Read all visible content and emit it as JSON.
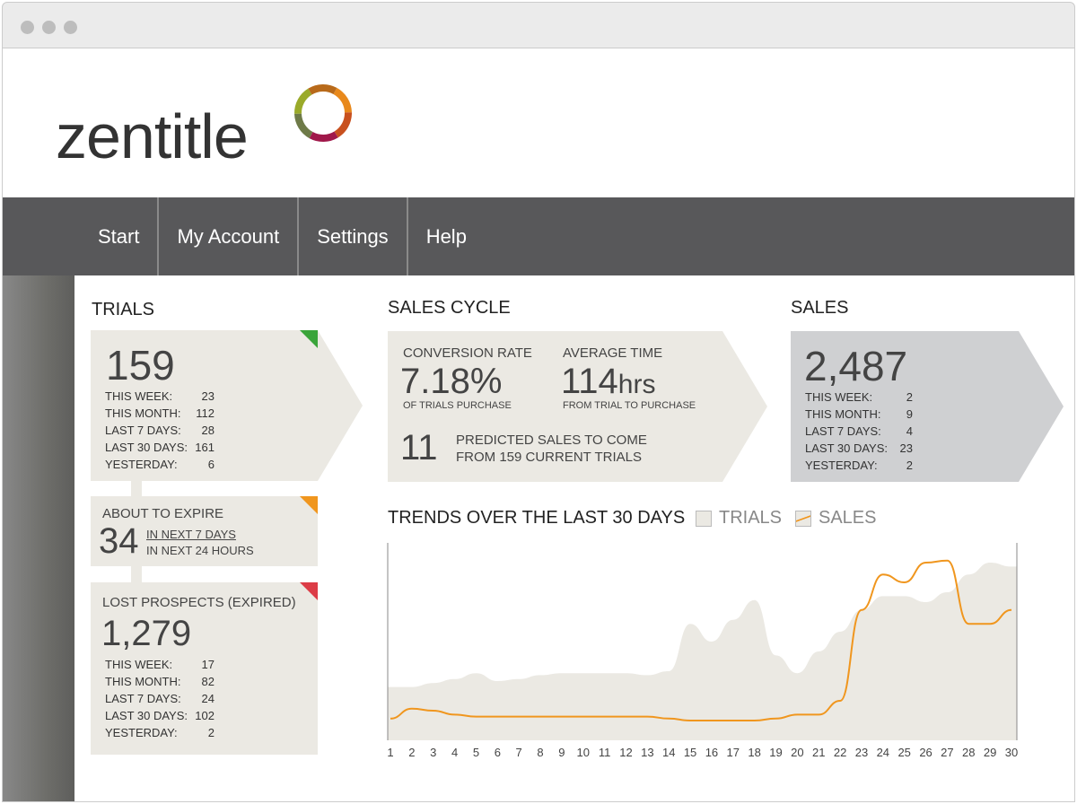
{
  "brand": {
    "name": "zentitle",
    "ring_colors": [
      "#e8891c",
      "#c8501e",
      "#a0184a",
      "#6e7a48",
      "#9aaa2a",
      "#b86a1a"
    ]
  },
  "nav": [
    "Start",
    "My Account",
    "Settings",
    "Help"
  ],
  "trials": {
    "title": "TRIALS",
    "total": "159",
    "rows": [
      [
        "THIS WEEK:",
        "23"
      ],
      [
        "THIS MONTH:",
        "112"
      ],
      [
        "LAST 7 DAYS:",
        "28"
      ],
      [
        "LAST 30 DAYS:",
        "161"
      ],
      [
        "YESTERDAY:",
        "6"
      ]
    ],
    "flag_color": "#3aa43a"
  },
  "expire": {
    "title": "ABOUT TO EXPIRE",
    "value": "34",
    "line1": "IN NEXT 7 DAYS",
    "line2": "IN NEXT 24 HOURS",
    "flag_color": "#f0961e"
  },
  "lost": {
    "title": "LOST PROSPECTS (EXPIRED)",
    "total": "1,279",
    "rows": [
      [
        "THIS WEEK:",
        "17"
      ],
      [
        "THIS MONTH:",
        "82"
      ],
      [
        "LAST 7 DAYS:",
        "24"
      ],
      [
        "LAST 30 DAYS:",
        "102"
      ],
      [
        "YESTERDAY:",
        "2"
      ]
    ],
    "flag_color": "#dc3c46"
  },
  "cycle": {
    "title": "SALES CYCLE",
    "conv_label": "CONVERSION RATE",
    "conv_value": "7.18%",
    "conv_sub": "OF TRIALS PURCHASE",
    "avg_label": "AVERAGE TIME",
    "avg_value": "114",
    "avg_unit": "hrs",
    "avg_sub": "FROM TRIAL TO PURCHASE",
    "pred_value": "11",
    "pred_line1": "PREDICTED SALES TO COME",
    "pred_line2": "FROM 159 CURRENT TRIALS"
  },
  "sales": {
    "title": "SALES",
    "total": "2,487",
    "rows": [
      [
        "THIS WEEK:",
        "2"
      ],
      [
        "THIS MONTH:",
        "9"
      ],
      [
        "LAST 7 DAYS:",
        "4"
      ],
      [
        "LAST 30 DAYS:",
        "23"
      ],
      [
        "YESTERDAY:",
        "2"
      ]
    ]
  },
  "chart_data": {
    "type": "area",
    "title": "TRENDS OVER THE LAST 30 DAYS",
    "x": [
      1,
      2,
      3,
      4,
      5,
      6,
      7,
      8,
      9,
      10,
      11,
      12,
      13,
      14,
      15,
      16,
      17,
      18,
      19,
      20,
      21,
      22,
      23,
      24,
      25,
      26,
      27,
      28,
      29,
      30
    ],
    "series": [
      {
        "name": "TRIALS",
        "type": "area",
        "color": "#ebe9e3",
        "values": [
          27,
          27,
          29,
          31,
          34,
          30,
          31,
          33,
          34,
          34,
          34,
          34,
          33,
          35,
          59,
          50,
          61,
          71,
          43,
          34,
          45,
          55,
          66,
          73,
          73,
          70,
          75,
          84,
          90,
          88
        ]
      },
      {
        "name": "SALES",
        "type": "line",
        "color": "#f0961e",
        "values": [
          11,
          16,
          15,
          13,
          12,
          12,
          12,
          12,
          12,
          12,
          12,
          12,
          12,
          11,
          10,
          10,
          10,
          10,
          11,
          13,
          13,
          20,
          66,
          84,
          80,
          90,
          91,
          59,
          59,
          66
        ]
      }
    ],
    "ylim": [
      0,
      100
    ],
    "xlabel": "",
    "ylabel": ""
  }
}
